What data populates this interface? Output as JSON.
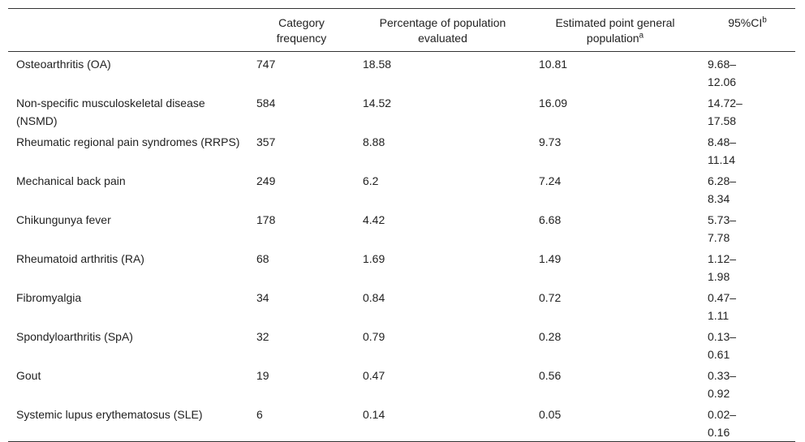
{
  "table": {
    "header": [
      {
        "text": ""
      },
      {
        "text": "Category frequency"
      },
      {
        "text": "Percentage of population evaluated"
      },
      {
        "text": "Estimated point general population",
        "sup": "a"
      },
      {
        "text": "95%CI",
        "sup": "b"
      }
    ],
    "rows": [
      [
        "Osteoarthritis (OA)",
        "747",
        "18.58",
        "10.81",
        "9.68–12.06"
      ],
      [
        "Non-specific musculoskeletal disease (NSMD)",
        "584",
        "14.52",
        "16.09",
        "14.72–17.58"
      ],
      [
        "Rheumatic regional pain syndromes (RRPS)",
        "357",
        "8.88",
        "9.73",
        "8.48–11.14"
      ],
      [
        "Mechanical back pain",
        "249",
        "6.2",
        "7.24",
        "6.28–8.34"
      ],
      [
        "Chikungunya fever",
        "178",
        "4.42",
        "6.68",
        "5.73–7.78"
      ],
      [
        "Rheumatoid arthritis (RA)",
        "68",
        "1.69",
        "1.49",
        "1.12–1.98"
      ],
      [
        "Fibromyalgia",
        "34",
        "0.84",
        "0.72",
        "0.47–1.11"
      ],
      [
        "Spondyloarthritis (SpA)",
        "32",
        "0.79",
        "0.28",
        "0.13–0.61"
      ],
      [
        "Gout",
        "19",
        "0.47",
        "0.56",
        "0.33–0.92"
      ],
      [
        "Systemic lupus erythematosus (SLE)",
        "6",
        "0.14",
        "0.05",
        "0.02–0.16"
      ]
    ]
  }
}
